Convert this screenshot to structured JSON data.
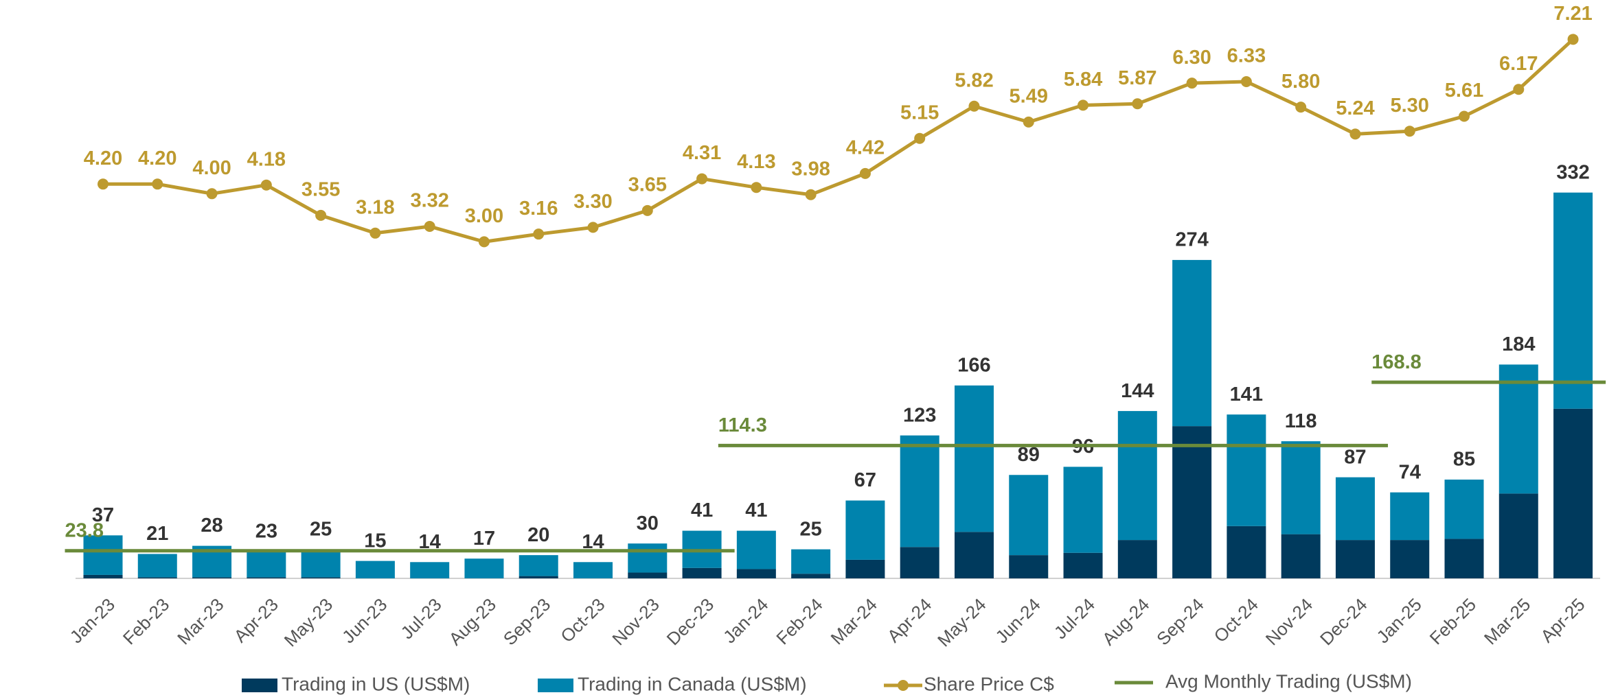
{
  "chart_data": {
    "type": "bar-line",
    "categories": [
      "Jan-23",
      "Feb-23",
      "Mar-23",
      "Apr-23",
      "May-23",
      "Jun-23",
      "Jul-23",
      "Aug-23",
      "Sep-23",
      "Oct-23",
      "Nov-23",
      "Dec-23",
      "Jan-24",
      "Feb-24",
      "Mar-24",
      "Apr-24",
      "May-24",
      "Jun-24",
      "Jul-24",
      "Aug-24",
      "Sep-24",
      "Oct-24",
      "Nov-24",
      "Dec-24",
      "Jan-25",
      "Feb-25",
      "Mar-25",
      "Apr-25"
    ],
    "series": [
      {
        "name": "Trading in US (US$M)",
        "color": "#003a5d",
        "type": "bar",
        "values": [
          3,
          1,
          1,
          1,
          1,
          0,
          0,
          0,
          2,
          0,
          5,
          9,
          8,
          4,
          16,
          27,
          40,
          20,
          22,
          33,
          131,
          45,
          38,
          33,
          33,
          34,
          73,
          146
        ]
      },
      {
        "name": "Trading in Canada (US$M)",
        "color": "#0083ad",
        "type": "bar",
        "values": [
          34,
          20,
          27,
          22,
          24,
          15,
          14,
          17,
          18,
          14,
          25,
          32,
          33,
          21,
          51,
          96,
          126,
          69,
          74,
          111,
          143,
          96,
          80,
          54,
          41,
          51,
          111,
          186
        ]
      },
      {
        "name": "Share Price C$",
        "color": "#bd9a2f",
        "type": "line",
        "axis": "y2",
        "values": [
          4.2,
          4.2,
          4.0,
          4.18,
          3.55,
          3.18,
          3.32,
          3.0,
          3.16,
          3.3,
          3.65,
          4.31,
          4.13,
          3.98,
          4.42,
          5.15,
          5.82,
          5.49,
          5.84,
          5.87,
          6.3,
          6.33,
          5.8,
          5.24,
          5.3,
          5.61,
          6.17,
          7.21
        ],
        "value_labels": [
          "4.20",
          "4.20",
          "4.00",
          "4.18",
          "3.55",
          "3.18",
          "3.32",
          "3.00",
          "3.16",
          "3.30",
          "3.65",
          "4.31",
          "4.13",
          "3.98",
          "4.42",
          "5.15",
          "5.82",
          "5.49",
          "5.84",
          "5.87",
          "6.30",
          "6.33",
          "5.80",
          "5.24",
          "5.30",
          "5.61",
          "6.17",
          "7.21"
        ]
      }
    ],
    "totals": [
      37,
      21,
      28,
      23,
      25,
      15,
      14,
      17,
      20,
      14,
      30,
      41,
      41,
      25,
      67,
      123,
      166,
      89,
      96,
      144,
      274,
      141,
      118,
      87,
      74,
      85,
      184,
      332
    ],
    "averages": {
      "name": "Avg Monthly Trading (US$M)",
      "color": "#6a8a3a",
      "segments": [
        {
          "value": 23.8,
          "from": "Jan-23",
          "to": "Dec-23"
        },
        {
          "value": 114.3,
          "from": "Jan-24",
          "to": "Dec-24"
        },
        {
          "value": 168.8,
          "from": "Jan-25",
          "to": "Apr-25"
        }
      ]
    },
    "ylim": [
      0,
      480
    ],
    "y2lim": [
      -4,
      7.6
    ],
    "grid": false
  }
}
